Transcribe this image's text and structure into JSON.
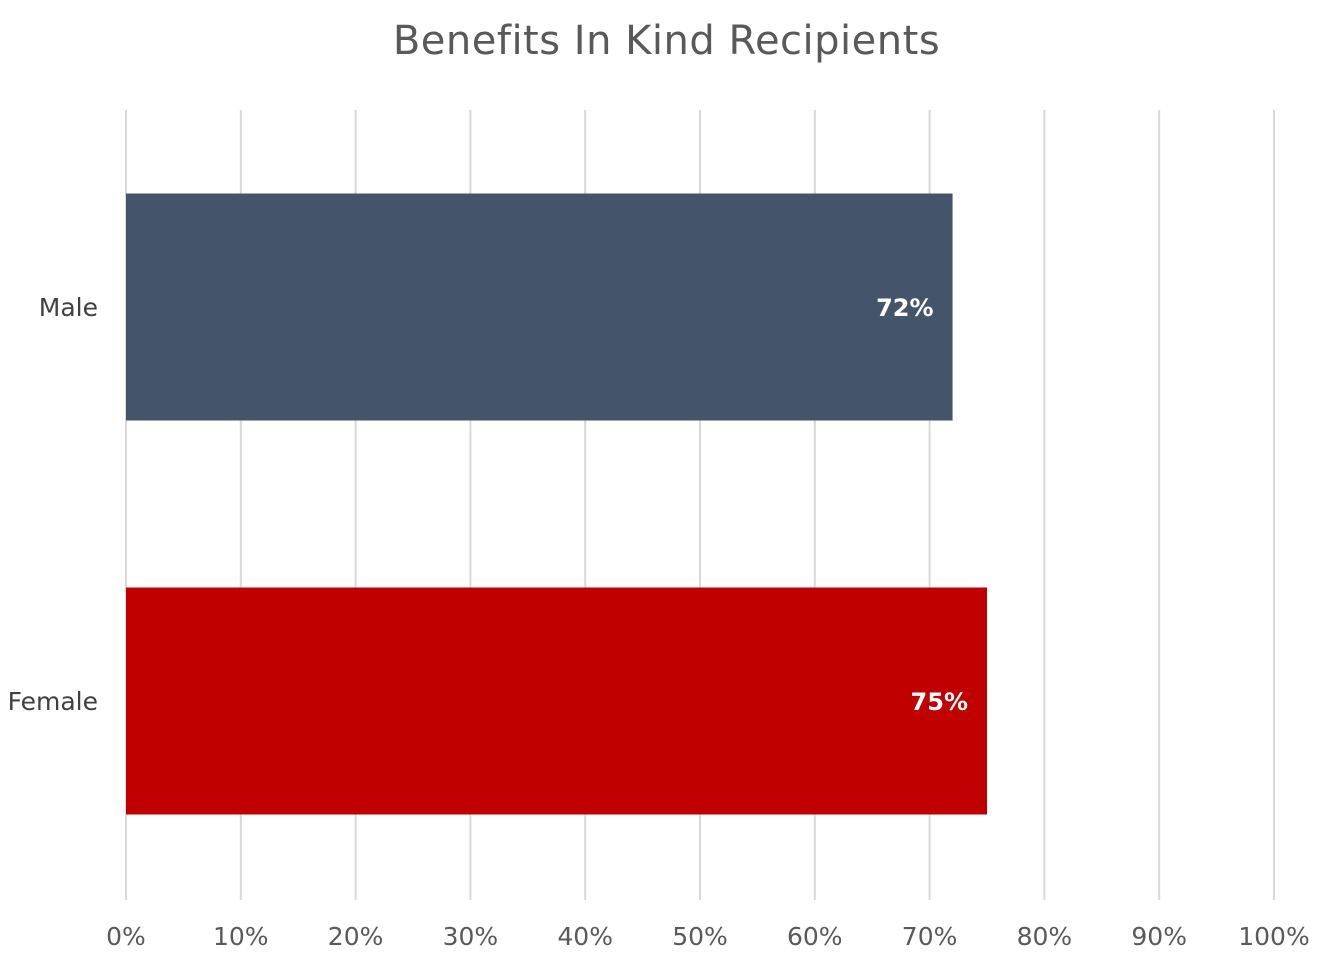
{
  "chart_data": {
    "type": "bar",
    "orientation": "horizontal",
    "title": "Benefits In Kind Recipients",
    "categories": [
      "Male",
      "Female"
    ],
    "values": [
      72,
      75
    ],
    "data_labels": [
      "72%",
      "75%"
    ],
    "colors": [
      "#44546a",
      "#c00000"
    ],
    "xlim": [
      0,
      100
    ],
    "x_ticks": [
      "0%",
      "10%",
      "20%",
      "30%",
      "40%",
      "50%",
      "60%",
      "70%",
      "80%",
      "90%",
      "100%"
    ],
    "xlabel": "",
    "ylabel": "",
    "grid": true,
    "legend": "none"
  }
}
